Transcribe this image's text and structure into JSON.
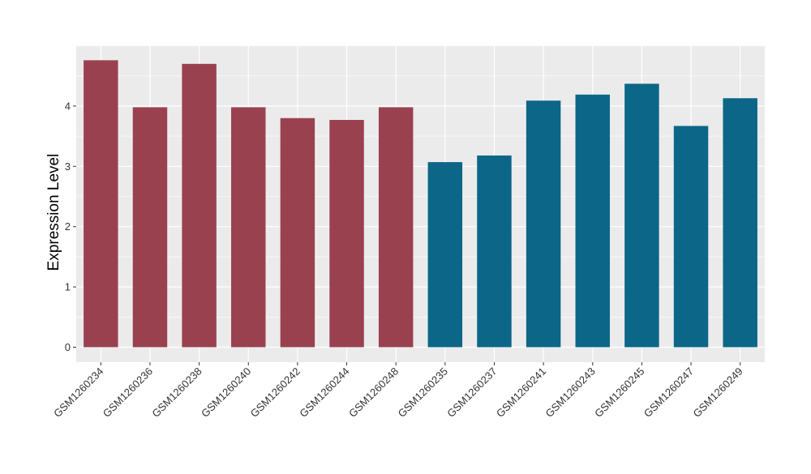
{
  "chart_data": {
    "type": "bar",
    "ylabel": "Expression Level",
    "xlabel": "",
    "ylim": [
      0,
      4.9
    ],
    "yticks": [
      0,
      1,
      2,
      3,
      4
    ],
    "grid": true,
    "legend": "none",
    "colors": {
      "group1": "#9a4150",
      "group2": "#0c6688",
      "panel": "#ebebeb",
      "grid": "#ffffff"
    },
    "categories": [
      "GSM1260234",
      "GSM1260236",
      "GSM1260238",
      "GSM1260240",
      "GSM1260242",
      "GSM1260244",
      "GSM1260248",
      "GSM1260235",
      "GSM1260237",
      "GSM1260241",
      "GSM1260243",
      "GSM1260245",
      "GSM1260247",
      "GSM1260249"
    ],
    "values": [
      4.76,
      3.98,
      4.7,
      3.98,
      3.8,
      3.77,
      3.98,
      3.07,
      3.18,
      4.09,
      4.19,
      4.37,
      3.67,
      4.13
    ],
    "bar_groups": [
      "group1",
      "group1",
      "group1",
      "group1",
      "group1",
      "group1",
      "group1",
      "group2",
      "group2",
      "group2",
      "group2",
      "group2",
      "group2",
      "group2"
    ]
  }
}
